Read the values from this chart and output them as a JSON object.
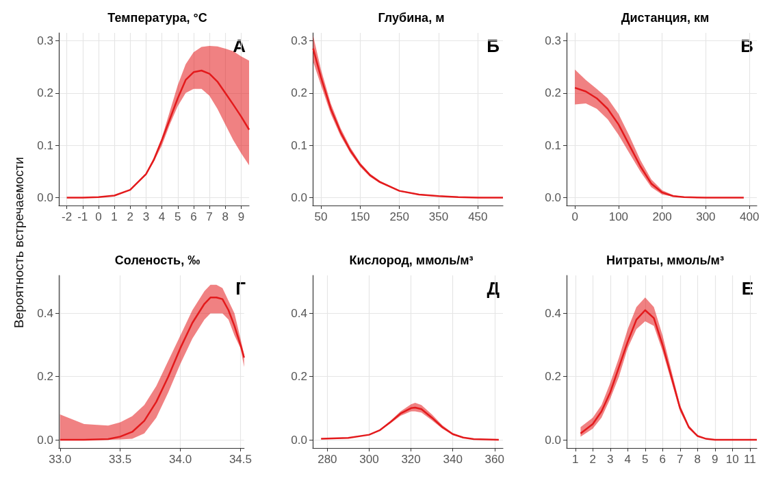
{
  "chart_data": [
    {
      "type": "line",
      "title": "Температура, °C",
      "ylabel": "Вероятность встречаемости",
      "annotations": [
        "А"
      ],
      "grid": true,
      "xlim": [
        -2.5,
        9.5
      ],
      "xticks": [
        -2,
        -1,
        0,
        1,
        2,
        3,
        4,
        5,
        6,
        7,
        8,
        9
      ],
      "ylim": [
        -0.015,
        0.315
      ],
      "yticks": [
        {
          "value": 0,
          "label": "0.0"
        },
        {
          "value": 0.1,
          "label": "0.1"
        },
        {
          "value": 0.2,
          "label": "0.2"
        },
        {
          "value": 0.3,
          "label": "0.3"
        }
      ],
      "x": [
        -2,
        -1,
        0,
        1,
        2,
        3,
        3.5,
        4,
        4.5,
        5,
        5.5,
        6,
        6.5,
        7,
        7.5,
        8,
        8.5,
        9,
        9.5
      ],
      "series": [
        {
          "color": "#e31a1c",
          "values": [
            0,
            0,
            0.001,
            0.004,
            0.015,
            0.045,
            0.073,
            0.11,
            0.15,
            0.19,
            0.225,
            0.24,
            0.243,
            0.237,
            0.222,
            0.2,
            0.178,
            0.155,
            0.13
          ],
          "lower": [
            0,
            0,
            0.001,
            0.004,
            0.014,
            0.043,
            0.069,
            0.1,
            0.14,
            0.175,
            0.2,
            0.208,
            0.208,
            0.195,
            0.17,
            0.14,
            0.11,
            0.085,
            0.062
          ],
          "upper": [
            0,
            0,
            0.001,
            0.004,
            0.016,
            0.047,
            0.077,
            0.115,
            0.165,
            0.215,
            0.255,
            0.278,
            0.288,
            0.29,
            0.289,
            0.285,
            0.28,
            0.27,
            0.262
          ]
        }
      ]
    },
    {
      "type": "line",
      "title": "Глубина, м",
      "annotations": [
        "Б"
      ],
      "grid": true,
      "xlim": [
        29,
        514
      ],
      "xticks": [
        50,
        150,
        250,
        350,
        450
      ],
      "ylim": [
        -0.015,
        0.315
      ],
      "yticks": [
        {
          "value": 0,
          "label": "0.0"
        },
        {
          "value": 0.1,
          "label": "0.1"
        },
        {
          "value": 0.2,
          "label": "0.2"
        },
        {
          "value": 0.3,
          "label": "0.3"
        }
      ],
      "x": [
        30,
        50,
        75,
        100,
        125,
        150,
        175,
        200,
        250,
        300,
        350,
        400,
        450,
        514
      ],
      "series": [
        {
          "color": "#e31a1c",
          "values": [
            0.285,
            0.23,
            0.17,
            0.125,
            0.09,
            0.063,
            0.043,
            0.03,
            0.013,
            0.006,
            0.003,
            0.001,
            0,
            0
          ],
          "lower": [
            0.26,
            0.215,
            0.16,
            0.118,
            0.085,
            0.059,
            0.04,
            0.028,
            0.012,
            0.005,
            0.002,
            0.001,
            0,
            0
          ],
          "upper": [
            0.31,
            0.245,
            0.18,
            0.133,
            0.096,
            0.067,
            0.046,
            0.032,
            0.014,
            0.007,
            0.004,
            0.002,
            0.001,
            0
          ]
        }
      ]
    },
    {
      "type": "line",
      "title": "Дистанция, км",
      "annotations": [
        "В"
      ],
      "grid": true,
      "xlim": [
        -19,
        417
      ],
      "xticks": [
        0,
        100,
        200,
        300,
        400
      ],
      "ylim": [
        -0.015,
        0.315
      ],
      "yticks": [
        {
          "value": 0,
          "label": "0.0"
        },
        {
          "value": 0.1,
          "label": "0.1"
        },
        {
          "value": 0.2,
          "label": "0.2"
        },
        {
          "value": 0.3,
          "label": "0.3"
        }
      ],
      "x": [
        0,
        25,
        50,
        75,
        100,
        125,
        150,
        175,
        200,
        225,
        250,
        300,
        387
      ],
      "series": [
        {
          "color": "#e31a1c",
          "values": [
            0.21,
            0.203,
            0.19,
            0.17,
            0.14,
            0.1,
            0.06,
            0.027,
            0.01,
            0.003,
            0.001,
            0,
            0
          ],
          "lower": [
            0.178,
            0.18,
            0.17,
            0.15,
            0.12,
            0.085,
            0.05,
            0.02,
            0.006,
            0.002,
            0.0005,
            0,
            0
          ],
          "upper": [
            0.245,
            0.225,
            0.208,
            0.19,
            0.16,
            0.118,
            0.072,
            0.035,
            0.014,
            0.005,
            0.0015,
            0,
            0
          ]
        }
      ]
    },
    {
      "type": "line",
      "title": "Соленость, ‰",
      "annotations": [
        "Г"
      ],
      "grid": true,
      "xlim": [
        32.99,
        34.53
      ],
      "xticks": [
        {
          "value": 33,
          "label": "33.0"
        },
        33.5,
        {
          "value": 34,
          "label": "34.0"
        },
        34.5
      ],
      "ylim": [
        -0.026,
        0.52
      ],
      "yticks": [
        {
          "value": 0,
          "label": "0.0"
        },
        {
          "value": 0.2,
          "label": "0.2"
        },
        {
          "value": 0.4,
          "label": "0.4"
        }
      ],
      "x": [
        33,
        33.2,
        33.4,
        33.5,
        33.6,
        33.7,
        33.8,
        33.9,
        34,
        34.1,
        34.2,
        34.25,
        34.3,
        34.35,
        34.4,
        34.45,
        34.5,
        34.53
      ],
      "series": [
        {
          "color": "#e31a1c",
          "values": [
            0,
            0,
            0.002,
            0.01,
            0.025,
            0.06,
            0.12,
            0.2,
            0.29,
            0.37,
            0.43,
            0.45,
            0.45,
            0.445,
            0.41,
            0.36,
            0.3,
            0.26
          ],
          "lower": [
            0,
            0,
            0,
            0.001,
            0.003,
            0.02,
            0.07,
            0.15,
            0.24,
            0.32,
            0.38,
            0.4,
            0.4,
            0.4,
            0.38,
            0.33,
            0.29,
            0.23
          ],
          "upper": [
            0.08,
            0.05,
            0.045,
            0.055,
            0.075,
            0.11,
            0.17,
            0.25,
            0.33,
            0.41,
            0.47,
            0.49,
            0.49,
            0.48,
            0.44,
            0.4,
            0.32,
            0.27
          ]
        }
      ]
    },
    {
      "type": "line",
      "title": "Кислород, ммоль/м³",
      "annotations": [
        "Д"
      ],
      "grid": true,
      "xlim": [
        273,
        364
      ],
      "xticks": [
        280,
        300,
        320,
        340,
        360
      ],
      "ylim": [
        -0.026,
        0.52
      ],
      "yticks": [
        {
          "value": 0,
          "label": "0.0"
        },
        {
          "value": 0.2,
          "label": "0.2"
        },
        {
          "value": 0.4,
          "label": "0.4"
        }
      ],
      "x": [
        277,
        290,
        300,
        305,
        310,
        315,
        320,
        322,
        325,
        330,
        335,
        340,
        345,
        350,
        362
      ],
      "series": [
        {
          "color": "#e31a1c",
          "values": [
            0.003,
            0.006,
            0.016,
            0.03,
            0.055,
            0.083,
            0.1,
            0.102,
            0.097,
            0.07,
            0.04,
            0.018,
            0.007,
            0.002,
            0
          ],
          "lower": [
            0.002,
            0.005,
            0.015,
            0.028,
            0.051,
            0.076,
            0.09,
            0.09,
            0.086,
            0.062,
            0.035,
            0.015,
            0.006,
            0.002,
            0
          ],
          "upper": [
            0.004,
            0.007,
            0.017,
            0.032,
            0.059,
            0.09,
            0.112,
            0.117,
            0.11,
            0.08,
            0.046,
            0.021,
            0.008,
            0.003,
            0
          ]
        }
      ]
    },
    {
      "type": "line",
      "title": "Нитраты, ммоль/м³",
      "annotations": [
        "Е"
      ],
      "grid": true,
      "xlim": [
        0.5,
        11.4
      ],
      "xticks": [
        1,
        2,
        3,
        4,
        5,
        6,
        7,
        8,
        9,
        10,
        11
      ],
      "ylim": [
        -0.026,
        0.52
      ],
      "yticks": [
        {
          "value": 0,
          "label": "0.0"
        },
        {
          "value": 0.2,
          "label": "0.2"
        },
        {
          "value": 0.4,
          "label": "0.4"
        }
      ],
      "x": [
        1.3,
        2,
        2.5,
        3,
        3.5,
        4,
        4.5,
        5,
        5.5,
        6,
        6.5,
        7,
        7.5,
        8,
        8.5,
        9,
        11.4
      ],
      "series": [
        {
          "color": "#e31a1c",
          "values": [
            0.02,
            0.05,
            0.09,
            0.15,
            0.23,
            0.31,
            0.38,
            0.41,
            0.385,
            0.3,
            0.2,
            0.1,
            0.04,
            0.012,
            0.003,
            0,
            0
          ],
          "lower": [
            0.01,
            0.035,
            0.07,
            0.13,
            0.2,
            0.29,
            0.35,
            0.375,
            0.36,
            0.28,
            0.185,
            0.09,
            0.035,
            0.01,
            0.002,
            0,
            0
          ],
          "upper": [
            0.04,
            0.07,
            0.11,
            0.18,
            0.26,
            0.35,
            0.42,
            0.45,
            0.42,
            0.33,
            0.22,
            0.11,
            0.046,
            0.015,
            0.004,
            0.001,
            0
          ]
        }
      ]
    }
  ]
}
